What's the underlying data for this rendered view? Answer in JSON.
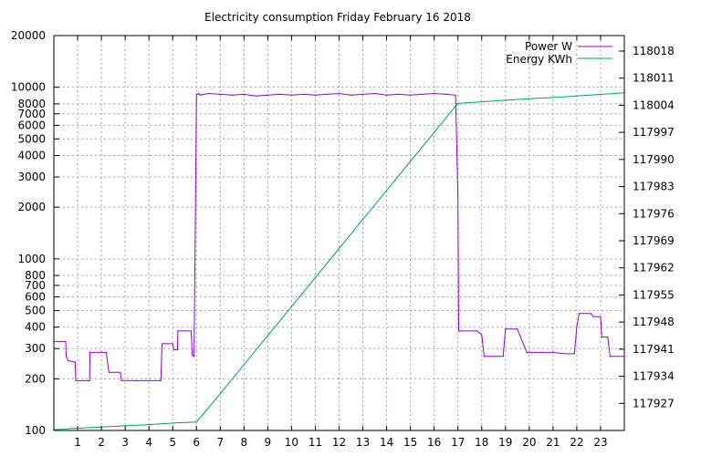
{
  "chart_data": {
    "type": "line",
    "title": "Electricity consumption Friday February 16 2018",
    "x_ticks": [
      "1",
      "2",
      "3",
      "4",
      "5",
      "6",
      "7",
      "8",
      "9",
      "10",
      "11",
      "12",
      "13",
      "14",
      "15",
      "16",
      "17",
      "18",
      "19",
      "20",
      "21",
      "22",
      "23"
    ],
    "xlim": [
      0,
      24
    ],
    "ylim_left": [
      100,
      20000
    ],
    "y_scale_left": "log",
    "y_ticks_left": [
      "100",
      "200",
      "300",
      "400",
      "500",
      "600",
      "700",
      "800",
      "1000",
      "2000",
      "3000",
      "4000",
      "5000",
      "6000",
      "7000",
      "8000",
      "10000",
      "20000"
    ],
    "ylim_right": [
      117920,
      118022
    ],
    "y_ticks_right": [
      "117927",
      "117934",
      "117941",
      "117948",
      "117955",
      "117962",
      "117969",
      "117976",
      "117983",
      "117990",
      "117997",
      "118004",
      "118011",
      "118018"
    ],
    "grid": true,
    "legend_position": "top-right",
    "series": [
      {
        "name": "Power W",
        "axis": "left",
        "color": "#9400d3",
        "x": [
          0,
          0.5,
          0.52,
          0.6,
          0.9,
          0.92,
          1.0,
          1.5,
          1.52,
          2.2,
          2.32,
          2.8,
          2.84,
          3.5,
          4.0,
          4.5,
          4.55,
          5.0,
          5.05,
          5.2,
          5.22,
          5.5,
          5.78,
          5.82,
          5.9,
          6.0,
          6.05,
          6.1,
          6.15,
          6.5,
          7.0,
          7.5,
          8.0,
          8.5,
          9.0,
          9.5,
          10.0,
          10.5,
          11.0,
          11.5,
          12.0,
          12.5,
          13.0,
          13.5,
          14.0,
          14.5,
          15.0,
          15.5,
          16.0,
          16.5,
          16.9,
          17.0,
          17.03,
          17.05,
          17.5,
          17.8,
          18.0,
          18.1,
          18.5,
          18.9,
          19.0,
          19.5,
          19.6,
          19.9,
          20.0,
          20.3,
          20.5,
          21.0,
          21.5,
          21.9,
          22.0,
          22.1,
          22.6,
          22.7,
          23.0,
          23.05,
          23.3,
          23.4,
          24.0
        ],
        "values": [
          330,
          330,
          270,
          255,
          250,
          195,
          195,
          195,
          285,
          285,
          218,
          218,
          195,
          195,
          195,
          195,
          320,
          320,
          295,
          295,
          380,
          380,
          380,
          275,
          270,
          9100,
          9100,
          9200,
          9000,
          9200,
          9100,
          9000,
          9100,
          8900,
          9000,
          9100,
          9000,
          9100,
          9000,
          9100,
          9200,
          9000,
          9100,
          9200,
          9000,
          9100,
          9000,
          9100,
          9200,
          9100,
          9000,
          2300,
          380,
          380,
          380,
          380,
          360,
          270,
          270,
          270,
          390,
          390,
          360,
          285,
          285,
          285,
          285,
          285,
          280,
          280,
          400,
          480,
          480,
          460,
          460,
          350,
          350,
          270,
          270
        ]
      },
      {
        "name": "Energy KWh",
        "axis": "right",
        "color": "#009e73",
        "x": [
          0,
          1,
          2,
          3,
          4,
          5,
          6,
          7,
          8,
          9,
          10,
          11,
          12,
          13,
          14,
          15,
          16,
          17,
          18,
          19,
          20,
          21,
          22,
          23,
          24
        ],
        "values": [
          117920.2,
          117920.6,
          117920.9,
          117921.2,
          117921.5,
          117921.9,
          117922.2,
          117929.5,
          117937.0,
          117944.5,
          117952.0,
          117959.5,
          117967.0,
          117974.5,
          117982.0,
          117989.5,
          117997.0,
          118004.5,
          118004.9,
          118005.3,
          118005.7,
          118006.0,
          118006.4,
          118006.8,
          118007.2
        ]
      }
    ]
  }
}
